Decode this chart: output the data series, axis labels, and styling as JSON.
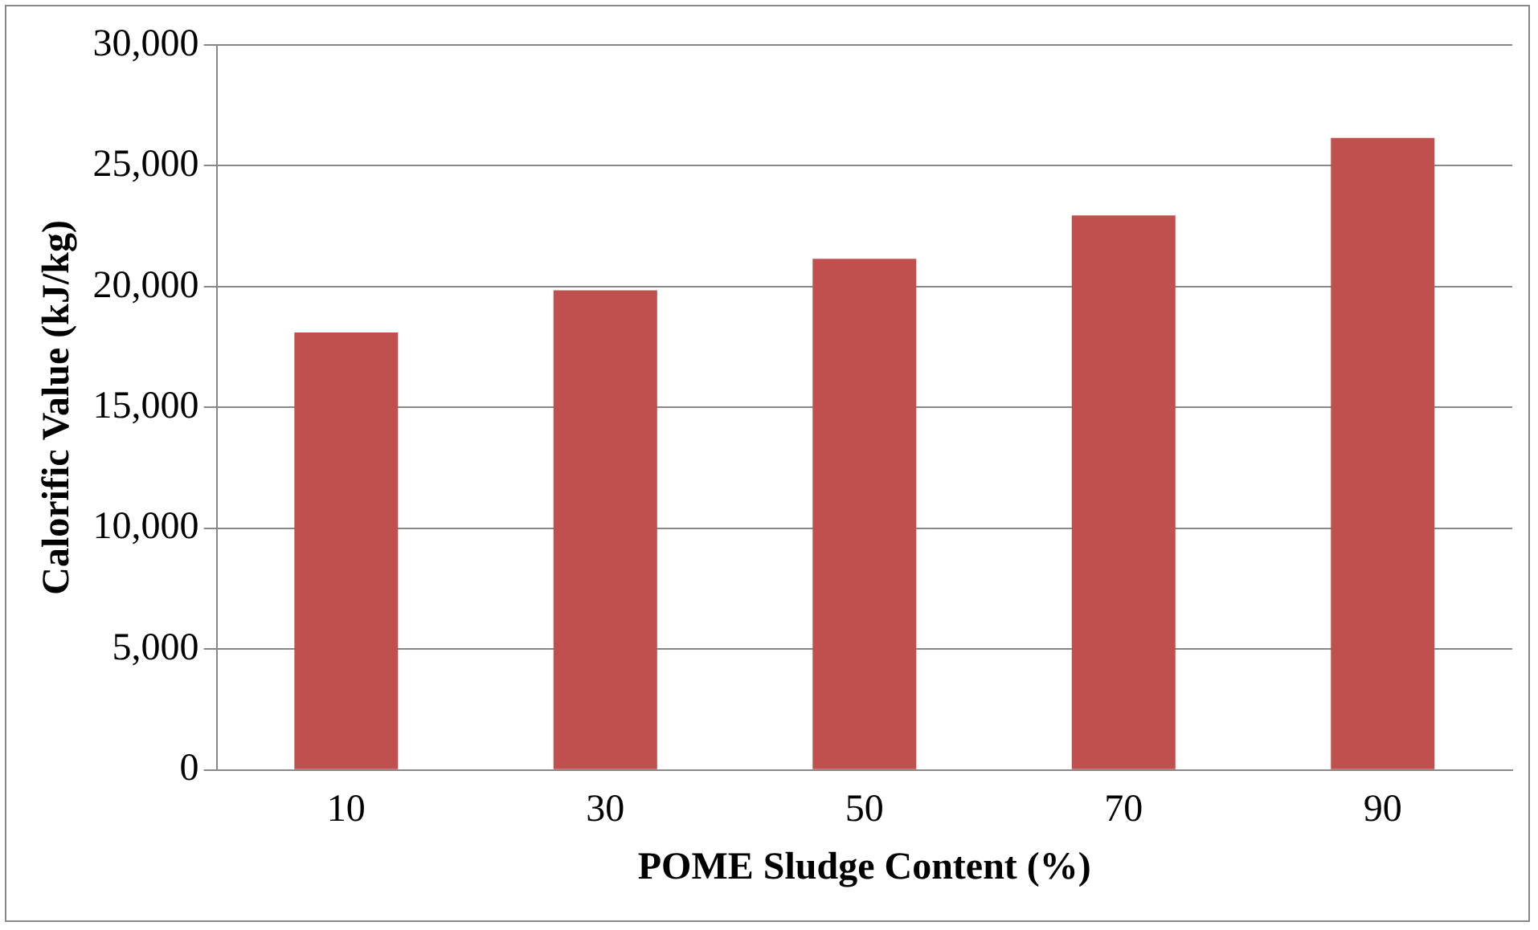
{
  "chart_data": {
    "type": "bar",
    "xlabel": "POME Sludge Content (%)",
    "ylabel": "Calorific Value (kJ/kg)",
    "categories": [
      "10",
      "30",
      "50",
      "70",
      "90"
    ],
    "values": [
      18100,
      19850,
      21150,
      22950,
      26150
    ],
    "color": "#c0504d",
    "ylim": [
      0,
      30000
    ],
    "yticks": [
      {
        "value": 0,
        "label": "0"
      },
      {
        "value": 5000,
        "label": "5,000"
      },
      {
        "value": 10000,
        "label": "10,000"
      },
      {
        "value": 15000,
        "label": "15,000"
      },
      {
        "value": 20000,
        "label": "20,000"
      },
      {
        "value": 25000,
        "label": "25,000"
      },
      {
        "value": 30000,
        "label": "30,000"
      }
    ],
    "grid": "y",
    "legend": false
  }
}
